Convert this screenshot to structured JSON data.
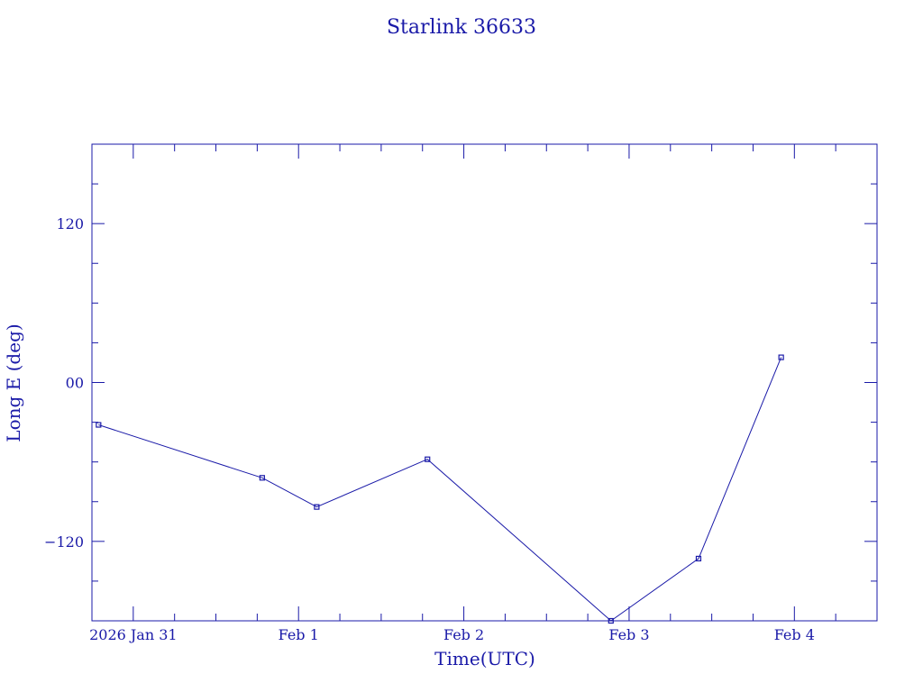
{
  "chart_data": {
    "type": "line",
    "title": "Starlink 36633",
    "xlabel": "Time(UTC)",
    "ylabel": "Long E (deg)",
    "x_ticks": [
      {
        "label": "2026 Jan 31",
        "t": 0
      },
      {
        "label": "Feb  1",
        "t": 1
      },
      {
        "label": "Feb  2",
        "t": 2
      },
      {
        "label": "Feb  3",
        "t": 3
      },
      {
        "label": "Feb  4",
        "t": 4
      }
    ],
    "y_ticks": [
      {
        "label": "120",
        "v": 120
      },
      {
        "label": "00",
        "v": 0
      },
      {
        "label": "−120",
        "v": -120
      }
    ],
    "xlim": [
      -0.25,
      4.5
    ],
    "ylim": [
      -180,
      180
    ],
    "series": [
      {
        "points": [
          {
            "t": -0.21,
            "v": -32
          },
          {
            "t": 0.78,
            "v": -72
          },
          {
            "t": 1.11,
            "v": -94
          },
          {
            "t": 1.78,
            "v": -58
          },
          {
            "t": 2.89,
            "v": -180
          },
          {
            "t": 3.42,
            "v": -133
          },
          {
            "t": 3.92,
            "v": 19
          }
        ]
      }
    ],
    "grid": false,
    "color": "#1a1aa8"
  }
}
